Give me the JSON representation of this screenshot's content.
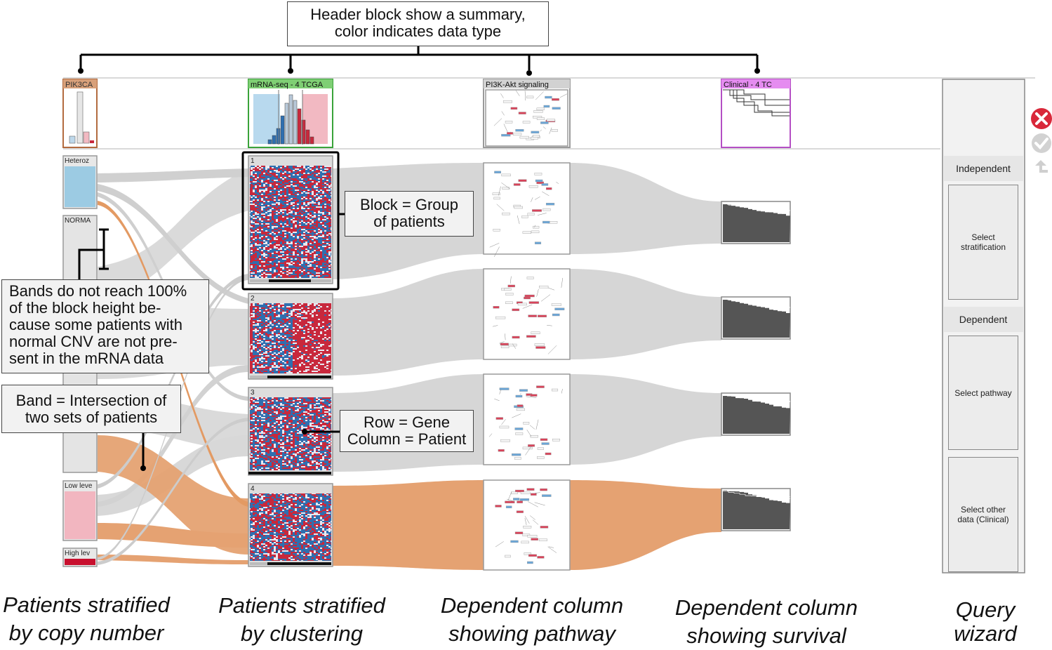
{
  "callouts": {
    "header": "Header block show a summary, color indicates data type",
    "block_l1": "Block = Group",
    "block_l2": "of patients",
    "bands_text": "Bands do not reach 100% of the block height be-cause some patients with normal CNV are not pre-sent in the mRNA data",
    "band_l1": "Band = Intersection of",
    "band_l2": "two sets of patients",
    "row_l1": "Row = Gene",
    "row_l2": "Column = Patient"
  },
  "headers": {
    "pik3ca": "PIK3CA",
    "mrna": "mRNA-seq - 4 TCGA",
    "pathway": "PI3K-Akt signaling",
    "clinical": "Clinical - 4 TC"
  },
  "cnv_blocks": {
    "heteroz": "Heteroz",
    "normal": "NORMA",
    "low": "Low leve",
    "high": "High lev"
  },
  "cluster_blocks": [
    "1",
    "2",
    "3",
    "4"
  ],
  "wizard": {
    "independent": "Independent",
    "dependent": "Dependent",
    "select_stratification": "Select stratification",
    "select_pathway": "Select pathway",
    "select_other": "Select other data (Clinical)"
  },
  "controls": {
    "close_icon": "close-icon",
    "check_icon": "check-icon",
    "export_icon": "export-icon"
  },
  "captions": {
    "col1_l1": "Patients stratified",
    "col1_l2": "by copy number",
    "col2_l1": "Patients stratified",
    "col2_l2": "by clustering",
    "col3_l1": "Dependent column",
    "col3_l2": "showing pathway",
    "col4_l1": "Dependent column",
    "col4_l2": "showing survival",
    "col5_l1": "Query",
    "col5_l2": "wizard"
  },
  "colors": {
    "copy_number": "#b36b3f",
    "mrna": "#3aa33a",
    "pathway": "#9a9a9a",
    "clinical": "#b44fc4",
    "orange_band": "#e5a272",
    "gray_band": "#d6d6d6",
    "heatmap_red": "#c8283c",
    "heatmap_blue": "#2f6fb0",
    "survival_fill": "#555555"
  }
}
